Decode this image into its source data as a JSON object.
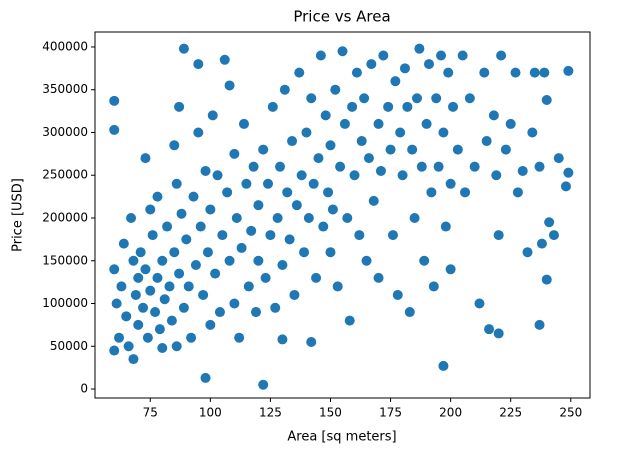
{
  "chart_data": {
    "type": "scatter",
    "title": "Price vs Area",
    "x_label": "Area [sq meters]",
    "y_label": "Price [USD]",
    "color": "#1f77b4",
    "x": [
      60,
      60,
      60,
      61,
      62,
      60,
      63,
      64,
      65,
      66,
      67,
      68,
      68,
      69,
      70,
      70,
      71,
      72,
      73,
      73,
      74,
      75,
      75,
      76,
      77,
      78,
      78,
      79,
      80,
      80,
      81,
      82,
      83,
      84,
      85,
      85,
      86,
      86,
      87,
      87,
      88,
      89,
      89,
      90,
      91,
      92,
      93,
      94,
      95,
      95,
      96,
      97,
      98,
      98,
      99,
      100,
      100,
      101,
      102,
      103,
      104,
      105,
      106,
      107,
      108,
      108,
      110,
      110,
      111,
      112,
      113,
      114,
      115,
      116,
      117,
      118,
      119,
      120,
      120,
      122,
      122,
      123,
      124,
      125,
      126,
      127,
      128,
      129,
      130,
      130,
      131,
      132,
      133,
      134,
      135,
      136,
      137,
      138,
      139,
      140,
      141,
      142,
      142,
      143,
      144,
      145,
      146,
      147,
      148,
      149,
      150,
      150,
      151,
      152,
      153,
      154,
      155,
      156,
      157,
      158,
      159,
      160,
      161,
      162,
      163,
      164,
      165,
      166,
      167,
      168,
      170,
      170,
      171,
      172,
      174,
      175,
      176,
      177,
      178,
      179,
      180,
      181,
      182,
      183,
      184,
      185,
      186,
      187,
      188,
      189,
      190,
      191,
      192,
      193,
      194,
      195,
      196,
      197,
      197,
      198,
      199,
      200,
      200,
      201,
      203,
      205,
      206,
      208,
      210,
      212,
      214,
      215,
      216,
      218,
      219,
      220,
      220,
      221,
      223,
      225,
      227,
      228,
      230,
      232,
      234,
      235,
      237,
      237,
      238,
      239,
      240,
      240,
      241,
      243,
      245,
      248,
      249,
      249
    ],
    "values": [
      337000,
      303000,
      140000,
      100000,
      60000,
      45000,
      120000,
      170000,
      85000,
      50000,
      200000,
      35000,
      150000,
      110000,
      130000,
      75000,
      160000,
      95000,
      270000,
      140000,
      60000,
      210000,
      115000,
      180000,
      90000,
      130000,
      225000,
      70000,
      150000,
      48000,
      105000,
      190000,
      120000,
      80000,
      160000,
      285000,
      50000,
      240000,
      330000,
      135000,
      205000,
      398000,
      95000,
      175000,
      120000,
      60000,
      225000,
      145000,
      300000,
      380000,
      190000,
      110000,
      13000,
      255000,
      160000,
      75000,
      210000,
      320000,
      135000,
      250000,
      90000,
      180000,
      385000,
      230000,
      150000,
      355000,
      100000,
      275000,
      200000,
      60000,
      165000,
      310000,
      240000,
      120000,
      185000,
      260000,
      90000,
      215000,
      150000,
      5000,
      280000,
      130000,
      240000,
      180000,
      330000,
      95000,
      200000,
      260000,
      145000,
      58000,
      350000,
      230000,
      175000,
      290000,
      110000,
      215000,
      370000,
      250000,
      160000,
      300000,
      200000,
      55000,
      340000,
      240000,
      130000,
      270000,
      390000,
      190000,
      320000,
      230000,
      160000,
      285000,
      210000,
      350000,
      120000,
      260000,
      395000,
      310000,
      200000,
      80000,
      330000,
      250000,
      370000,
      180000,
      290000,
      340000,
      150000,
      270000,
      380000,
      220000,
      310000,
      130000,
      255000,
      390000,
      330000,
      280000,
      180000,
      360000,
      110000,
      300000,
      250000,
      375000,
      330000,
      90000,
      280000,
      200000,
      340000,
      398000,
      260000,
      150000,
      310000,
      380000,
      230000,
      120000,
      340000,
      260000,
      390000,
      27000,
      300000,
      190000,
      370000,
      240000,
      140000,
      330000,
      280000,
      390000,
      230000,
      340000,
      260000,
      100000,
      370000,
      290000,
      70000,
      320000,
      250000,
      65000,
      180000,
      390000,
      280000,
      310000,
      370000,
      230000,
      255000,
      160000,
      300000,
      370000,
      75000,
      260000,
      170000,
      370000,
      128000,
      338000,
      195000,
      180000,
      270000,
      237000,
      372000,
      253000
    ],
    "xlim": [
      52,
      258
    ],
    "ylim": [
      -10500,
      417500
    ],
    "xticks": [
      75,
      100,
      125,
      150,
      175,
      200,
      225,
      250
    ],
    "yticks": [
      0,
      50000,
      100000,
      150000,
      200000,
      250000,
      300000,
      350000,
      400000
    ]
  }
}
